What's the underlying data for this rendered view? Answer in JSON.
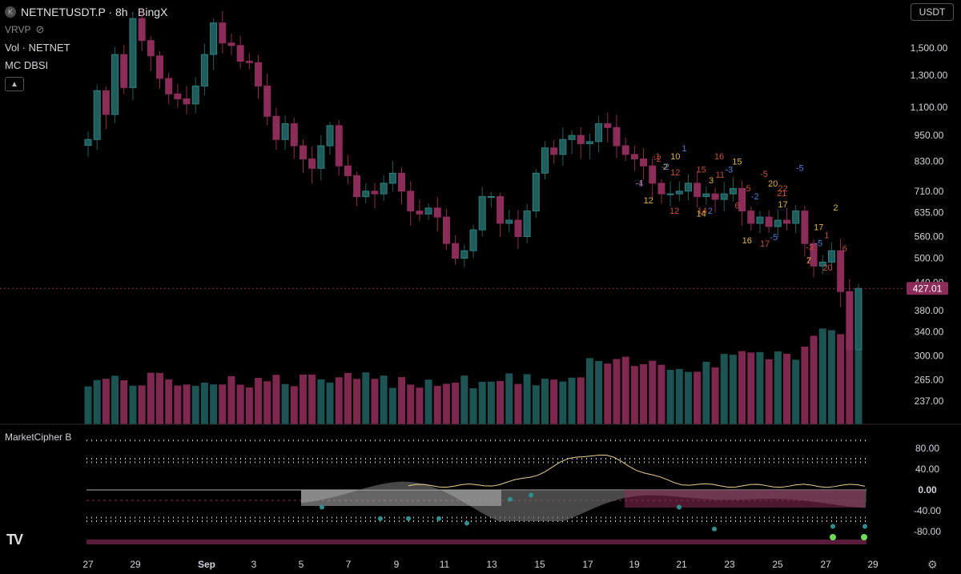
{
  "header": {
    "symbol": "NETNETUSDT.P",
    "interval": "8h",
    "exchange": "BingX",
    "symbol_badge": "K",
    "indicators": [
      "VRVP",
      "Vol · NETNET",
      "MC DBSI"
    ]
  },
  "toolbar": {
    "currency": "USDT",
    "collapse_icon": "chevron-up-icon",
    "settings_icon": "gear-icon"
  },
  "lower_pane": {
    "title": "MarketCipher B",
    "axis_ticks": [
      "80.00",
      "40.00",
      "0.00",
      "-40.00",
      "-80.00"
    ]
  },
  "colors": {
    "up": "#1f5c5c",
    "down": "#8c2c58",
    "price_tag": "#8c2c58",
    "background": "#000000"
  },
  "chart_data": {
    "type": "candlestick",
    "title": "NETNETUSDT.P · 8h · BingX",
    "price_scale": "log",
    "y_ticks": [
      1500,
      1300,
      1100,
      950,
      830,
      710,
      635,
      560,
      500,
      440,
      380,
      340,
      300,
      265,
      237
    ],
    "y_tick_labels": [
      "1,500.00",
      "1,300.00",
      "1,100.00",
      "950.00",
      "830.00",
      "710.00",
      "635.00",
      "560.00",
      "500.00",
      "440.00",
      "380.00",
      "340.00",
      "300.00",
      "265.00",
      "237.00"
    ],
    "x_ticks": [
      "27",
      "29",
      "Sep",
      "3",
      "5",
      "7",
      "9",
      "11",
      "13",
      "15",
      "17",
      "19",
      "21",
      "23",
      "25",
      "27",
      "29"
    ],
    "last_price": "427.01",
    "last_price_value": 427.01,
    "close": [
      930,
      1200,
      1060,
      1450,
      1220,
      1750,
      1560,
      1440,
      1280,
      1180,
      1150,
      1120,
      1230,
      1450,
      1710,
      1540,
      1520,
      1400,
      1390,
      1230,
      1050,
      930,
      1010,
      900,
      840,
      800,
      900,
      1000,
      810,
      770,
      690,
      710,
      700,
      740,
      780,
      710,
      640,
      630,
      650,
      620,
      540,
      500,
      520,
      580,
      690,
      690,
      600,
      610,
      560,
      640,
      780,
      890,
      860,
      930,
      950,
      910,
      920,
      1010,
      990,
      900,
      860,
      840,
      810,
      740,
      700,
      700,
      710,
      740,
      690,
      700,
      680,
      700,
      720,
      640,
      600,
      620,
      590,
      610,
      600,
      640,
      540,
      480,
      490,
      520,
      420,
      310,
      427
    ]
  },
  "annotations": {
    "red": [
      "-4",
      "-1",
      "-2",
      "12",
      "12",
      "15",
      "14",
      "16",
      "11",
      "6",
      "-5",
      "-5",
      "17",
      "21",
      "22",
      "2",
      "-3",
      "1",
      "20",
      "6"
    ],
    "orange": [
      "12",
      "2",
      "10",
      "14",
      "3",
      "15",
      "16",
      "20",
      "17",
      "7",
      "17",
      "2"
    ],
    "blue": [
      "-1",
      "-2",
      "1",
      "2",
      "-3",
      "-2",
      "-5",
      "-5",
      "-5"
    ]
  }
}
